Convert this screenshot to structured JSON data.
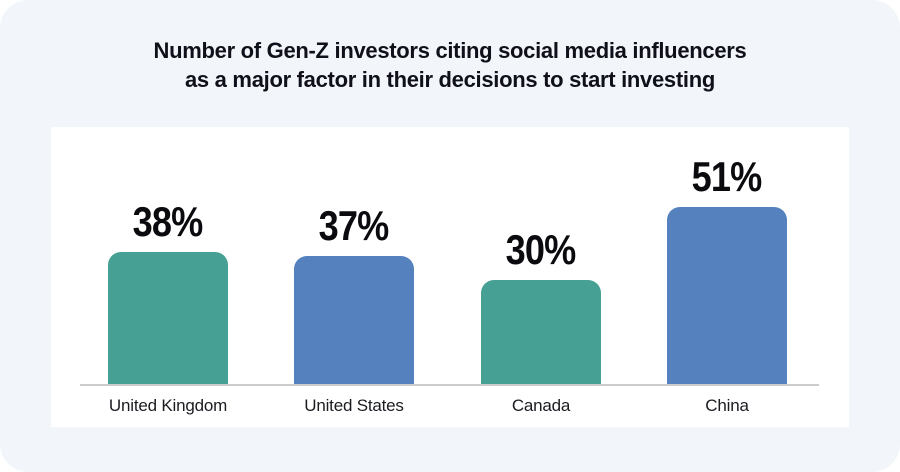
{
  "chart_data": {
    "type": "bar",
    "title": "Number of Gen-Z investors citing social media influencers as a major factor in their decisions to start investing",
    "title_lines": [
      "Number of Gen-Z investors citing social media influencers",
      "as a major factor in their decisions to start investing"
    ],
    "categories": [
      "United Kingdom",
      "United States",
      "Canada",
      "China"
    ],
    "values": [
      38,
      37,
      30,
      51
    ],
    "value_labels": [
      "38%",
      "37%",
      "30%",
      "51%"
    ],
    "unit": "%",
    "bar_colors": [
      "#46a094",
      "#5581be",
      "#46a094",
      "#5581be"
    ],
    "xlabel": "",
    "ylabel": "",
    "ylim": [
      0,
      60
    ],
    "grid": false,
    "legend": false
  },
  "colors": {
    "teal": "#46a094",
    "blue": "#5581be",
    "background": "#f2f5fa",
    "panel": "#ffffff",
    "axis_line": "#cccccc",
    "text": "#10101a"
  }
}
